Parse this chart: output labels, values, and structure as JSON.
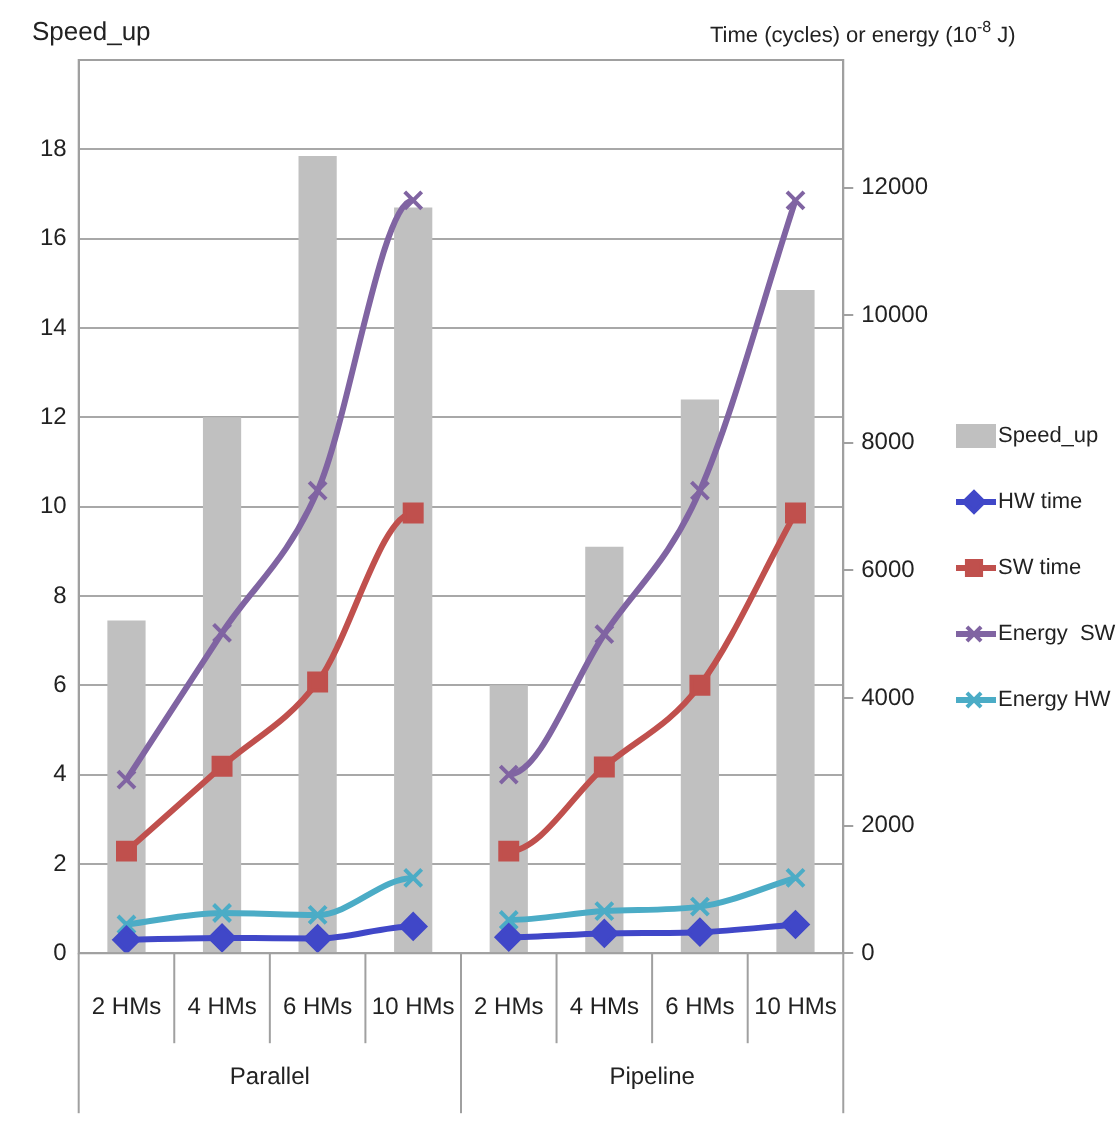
{
  "chart_data": {
    "type": "bar",
    "ylabel": "Speed_up",
    "y2label": "Time (cycles) or energy (10$^{-8}$ J)",
    "categories": [
      "2 HMs",
      "4 HMs",
      "6 HMs",
      "10 HMs",
      "2 HMs",
      "4 HMs",
      "6 HMs",
      "10 HMs"
    ],
    "annotations": [
      "Parallel",
      "Pipeline"
    ],
    "series": [
      {
        "name": "Speed_up",
        "color": "#c0c0c0",
        "values": [
          7.45,
          12,
          17.85,
          16.7,
          6,
          9.1,
          12.4,
          14.85
        ]
      },
      {
        "name": "HW time",
        "type": "line",
        "axis": "y2",
        "marker": "diamond",
        "color": "#4047c8",
        "values": [
          210,
          240,
          230,
          420,
          250,
          310,
          330,
          450
        ]
      },
      {
        "name": "SW time",
        "type": "line",
        "axis": "y2",
        "marker": "square",
        "color": "#c0504d",
        "values": [
          1600,
          2930,
          4250,
          6900,
          1600,
          2920,
          4200,
          6900
        ]
      },
      {
        "name": "Energy  SW",
        "type": "line",
        "axis": "y2",
        "marker": "cross",
        "color": "#8064a2",
        "values": [
          2720,
          5020,
          7250,
          11800,
          2800,
          5000,
          7250,
          11800
        ]
      },
      {
        "name": "Energy HW",
        "type": "line",
        "axis": "y2",
        "marker": "cross",
        "color": "#4bacc6",
        "values": [
          450,
          630,
          600,
          1180,
          520,
          660,
          730,
          1180
        ]
      }
    ],
    "ylim": [
      0,
      20
    ],
    "yticks": [
      0,
      2,
      4,
      6,
      8,
      10,
      12,
      14,
      16,
      18
    ],
    "y2lim": [
      0,
      14000
    ],
    "y2ticks": [
      0,
      2000,
      4000,
      6000,
      8000,
      10000,
      12000
    ],
    "grid": "y",
    "legend": "right"
  }
}
